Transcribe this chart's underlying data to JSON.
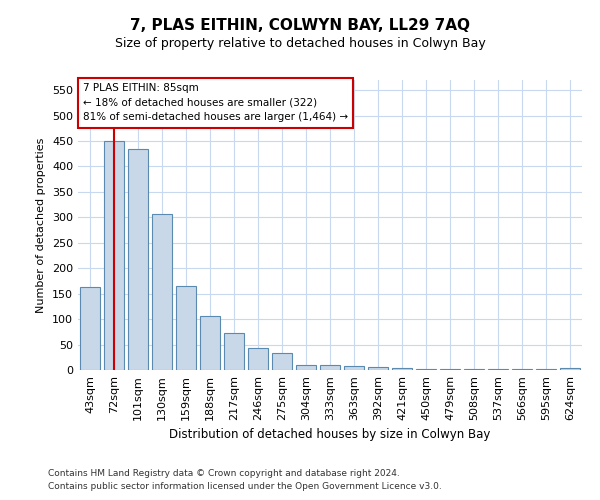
{
  "title": "7, PLAS EITHIN, COLWYN BAY, LL29 7AQ",
  "subtitle": "Size of property relative to detached houses in Colwyn Bay",
  "xlabel": "Distribution of detached houses by size in Colwyn Bay",
  "ylabel": "Number of detached properties",
  "categories": [
    "43sqm",
    "72sqm",
    "101sqm",
    "130sqm",
    "159sqm",
    "188sqm",
    "217sqm",
    "246sqm",
    "275sqm",
    "304sqm",
    "333sqm",
    "363sqm",
    "392sqm",
    "421sqm",
    "450sqm",
    "479sqm",
    "508sqm",
    "537sqm",
    "566sqm",
    "595sqm",
    "624sqm"
  ],
  "values": [
    163,
    450,
    435,
    307,
    165,
    106,
    73,
    44,
    33,
    10,
    10,
    8,
    5,
    3,
    2,
    2,
    2,
    1,
    1,
    1,
    4
  ],
  "bar_color": "#c8d8e8",
  "bar_edge_color": "#5a8ab0",
  "marker_bar_index": 1,
  "marker_color": "#cc0000",
  "ylim": [
    0,
    570
  ],
  "yticks": [
    0,
    50,
    100,
    150,
    200,
    250,
    300,
    350,
    400,
    450,
    500,
    550
  ],
  "annotation_text": "7 PLAS EITHIN: 85sqm\n← 18% of detached houses are smaller (322)\n81% of semi-detached houses are larger (1,464) →",
  "annotation_box_color": "#ffffff",
  "annotation_box_edge": "#cc0000",
  "footer_line1": "Contains HM Land Registry data © Crown copyright and database right 2024.",
  "footer_line2": "Contains public sector information licensed under the Open Government Licence v3.0.",
  "background_color": "#ffffff",
  "grid_color": "#c8d8ee",
  "title_fontsize": 11,
  "subtitle_fontsize": 9
}
